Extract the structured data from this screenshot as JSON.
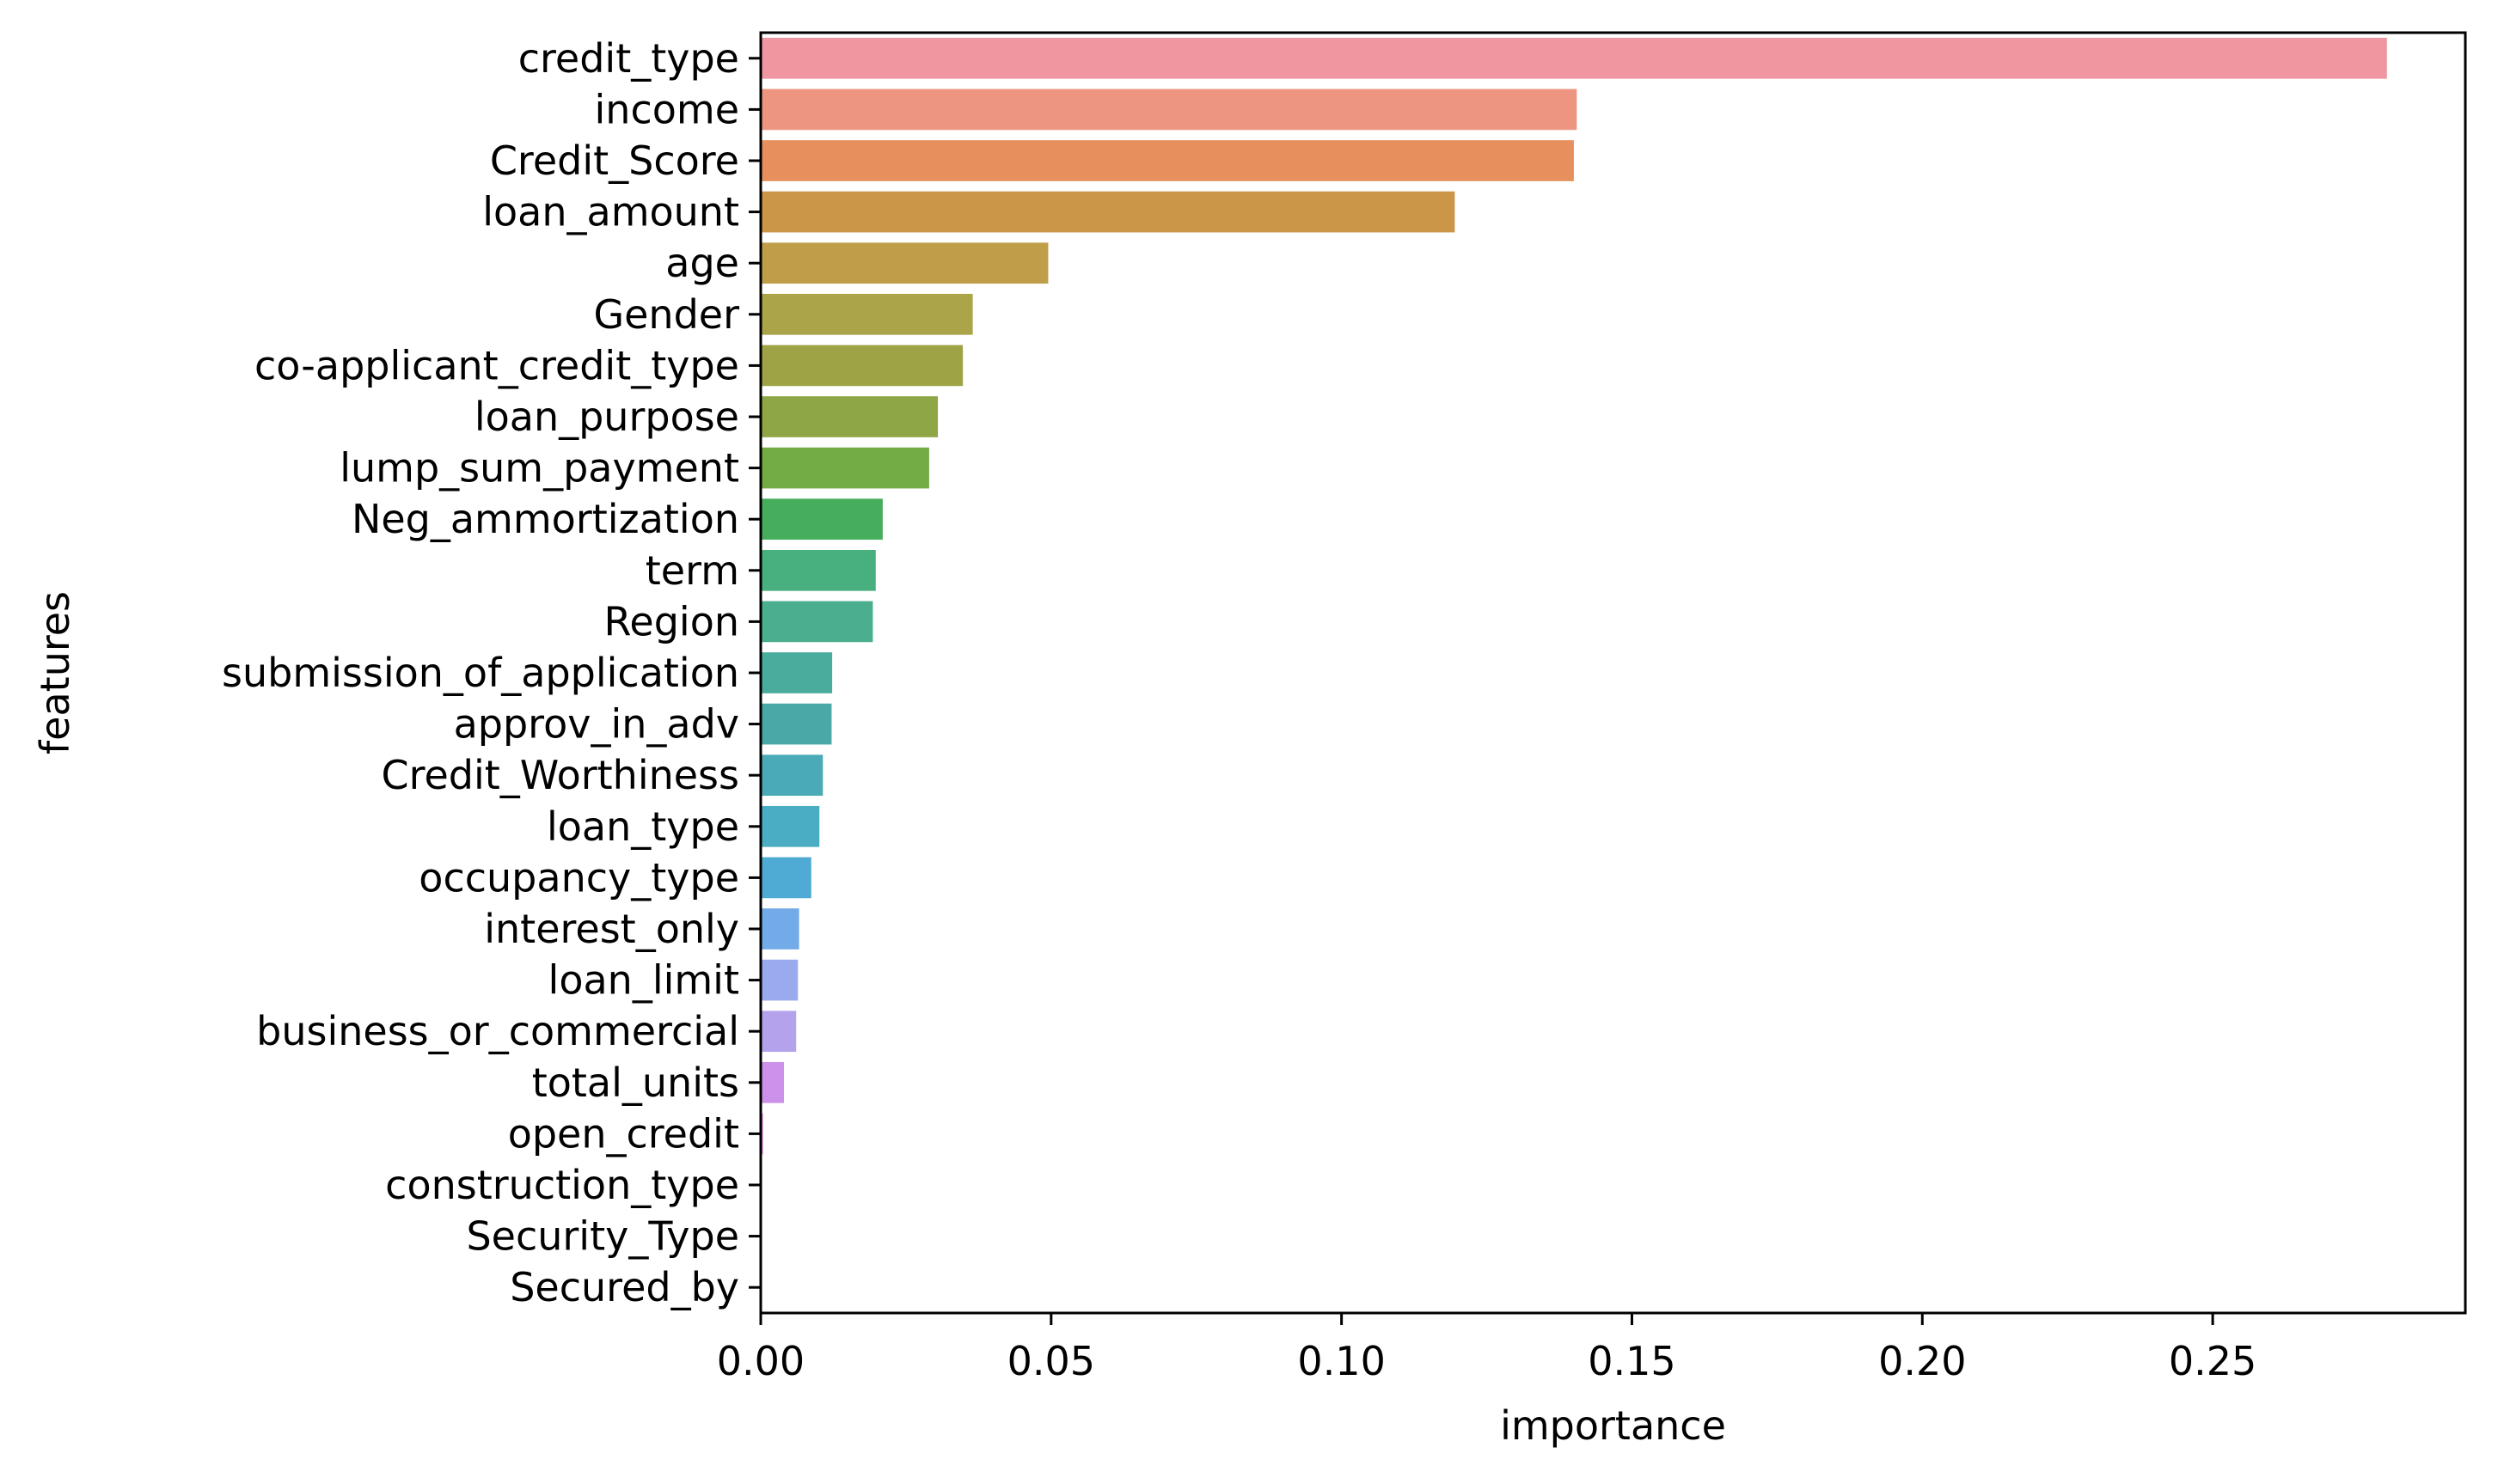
{
  "chart_data": {
    "type": "bar",
    "orientation": "horizontal",
    "title": "",
    "xlabel": "importance",
    "ylabel": "features",
    "xlim": [
      0,
      0.2935
    ],
    "xticks": [
      0.0,
      0.05,
      0.1,
      0.15,
      0.2,
      0.25
    ],
    "xtick_labels": [
      "0.00",
      "0.05",
      "0.10",
      "0.15",
      "0.20",
      "0.25"
    ],
    "grid": false,
    "legend": "none",
    "categories": [
      "credit_type",
      "income",
      "Credit_Score",
      "loan_amount",
      "age",
      "Gender",
      "co-applicant_credit_type",
      "loan_purpose",
      "lump_sum_payment",
      "Neg_ammortization",
      "term",
      "Region",
      "submission_of_application",
      "approv_in_adv",
      "Credit_Worthiness",
      "loan_type",
      "occupancy_type",
      "interest_only",
      "loan_limit",
      "business_or_commercial",
      "total_units",
      "open_credit",
      "construction_type",
      "Security_Type",
      "Secured_by"
    ],
    "values": [
      0.28,
      0.1405,
      0.14,
      0.1195,
      0.0495,
      0.0365,
      0.0348,
      0.0305,
      0.029,
      0.021,
      0.0198,
      0.0193,
      0.0123,
      0.0122,
      0.0107,
      0.0101,
      0.0087,
      0.0066,
      0.0064,
      0.0061,
      0.004,
      0.0004,
      0.0,
      0.0,
      0.0
    ],
    "colors": [
      "#ef96a1",
      "#ed9580",
      "#e7905e",
      "#cb9648",
      "#c09e49",
      "#aca449",
      "#9ea345",
      "#8ea645",
      "#73ac45",
      "#45ad5c",
      "#48af7e",
      "#4aae8f",
      "#49ac9c",
      "#4aa9a6",
      "#4aaab5",
      "#4badc3",
      "#50abd4",
      "#72abe8",
      "#9aaaee",
      "#b4a2ec",
      "#cc91ea",
      "#e58ed8",
      "#e98fc4",
      "#ec93b4",
      "#ee95a6"
    ]
  }
}
